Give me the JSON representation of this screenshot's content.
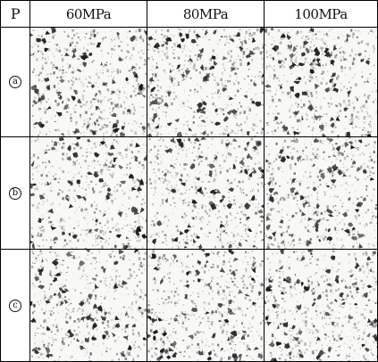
{
  "figure": {
    "corner_label": "P",
    "columns": [
      "60MPa",
      "80MPa",
      "100MPa"
    ],
    "rows": [
      {
        "label": "a"
      },
      {
        "label": "b"
      },
      {
        "label": "c"
      }
    ],
    "colors": {
      "border": "#000000",
      "background": "#ffffff",
      "grain": "#1a1a1a"
    }
  }
}
